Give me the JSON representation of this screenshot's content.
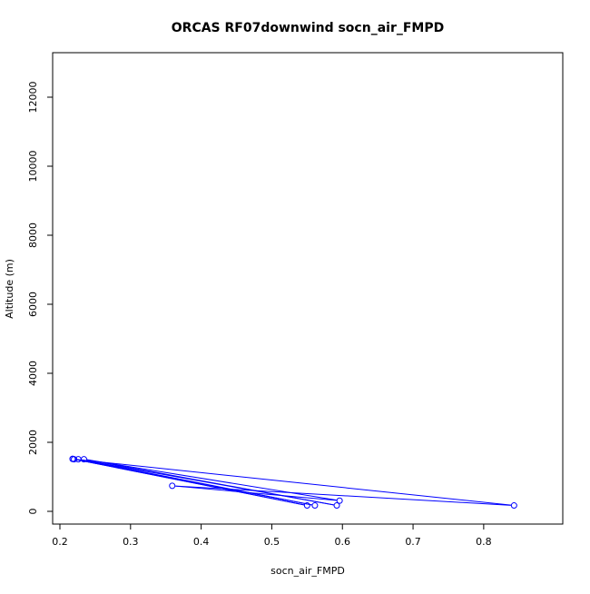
{
  "chart_data": {
    "type": "line",
    "title": "ORCAS RF07downwind socn_air_FMPD",
    "xlabel": "socn_air_FMPD",
    "ylabel": "Altitude (m)",
    "xlim": [
      0.2,
      0.84
    ],
    "ylim": [
      0,
      12700
    ],
    "x_ticks": [
      "0.2",
      "0.3",
      "0.4",
      "0.5",
      "0.6",
      "0.7",
      "0.8"
    ],
    "y_ticks": [
      "0",
      "2000",
      "4000",
      "6000",
      "8000",
      "10000",
      "12000"
    ],
    "grid": false,
    "marker": "open-circle",
    "series": [
      {
        "color": "#0000ff",
        "points": [
          {
            "x": 0.218,
            "y": 1520
          },
          {
            "x": 0.55,
            "y": 170
          },
          {
            "x": 0.218,
            "y": 1520
          },
          {
            "x": 0.561,
            "y": 170
          },
          {
            "x": 0.226,
            "y": 1510
          },
          {
            "x": 0.592,
            "y": 170
          },
          {
            "x": 0.234,
            "y": 1510
          },
          {
            "x": 0.596,
            "y": 310
          },
          {
            "x": 0.359,
            "y": 740
          },
          {
            "x": 0.843,
            "y": 170
          },
          {
            "x": 0.22,
            "y": 1510
          }
        ]
      }
    ]
  }
}
